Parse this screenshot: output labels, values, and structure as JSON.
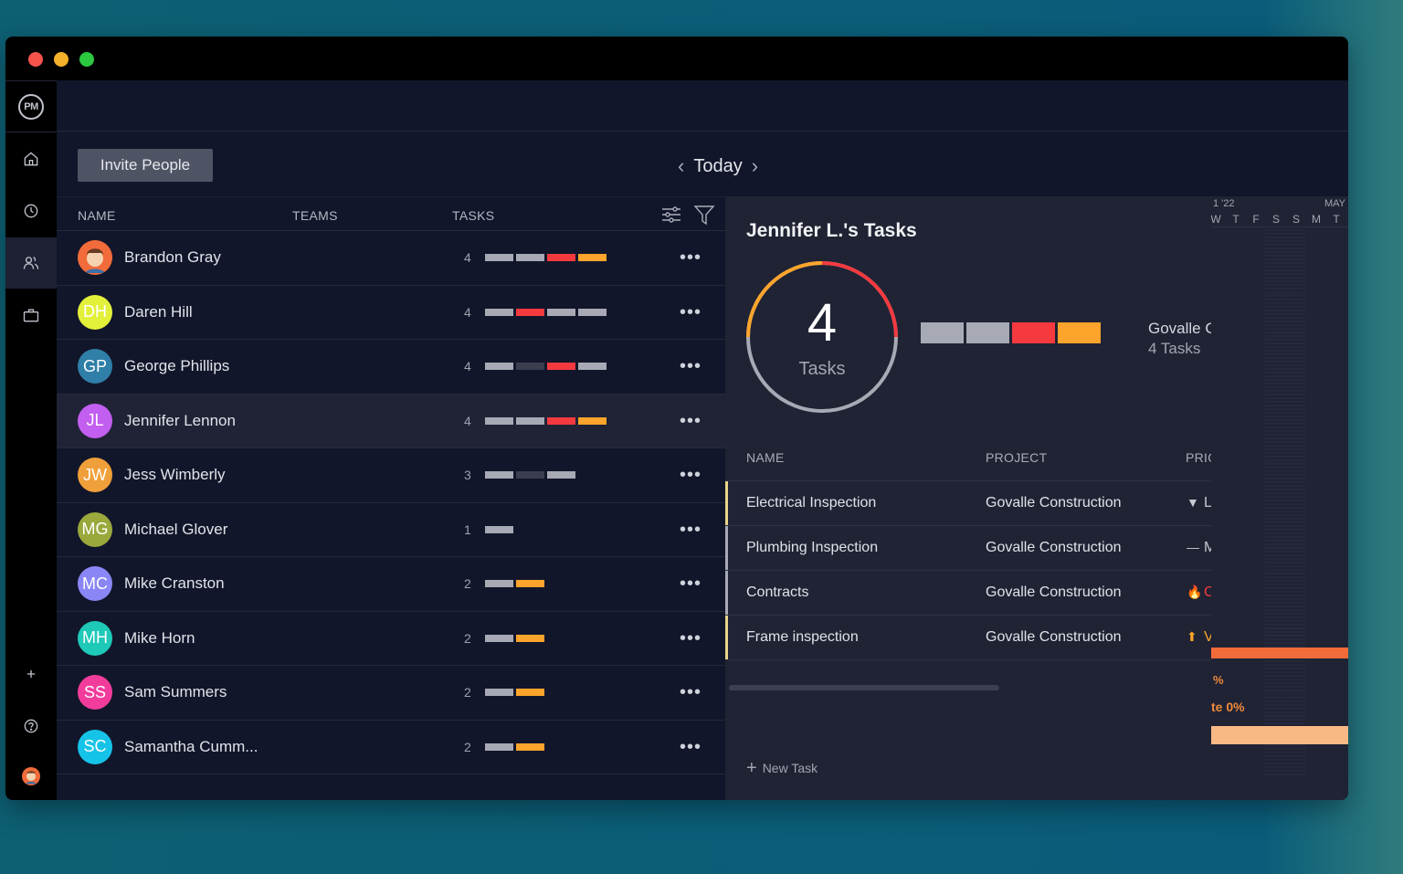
{
  "colors": {
    "gray": "#a7aab5",
    "dark": "#3a3e4f",
    "red": "#f43a3f",
    "orange": "#fca42b",
    "accent_yellow": "#e8d58a",
    "accent_gray": "#a7aab5"
  },
  "sidebar": {
    "logo": "PM",
    "items": [
      {
        "name": "home",
        "icon": "home-icon"
      },
      {
        "name": "time",
        "icon": "clock-icon"
      },
      {
        "name": "people",
        "icon": "people-icon",
        "active": true
      },
      {
        "name": "projects",
        "icon": "briefcase-icon"
      }
    ],
    "bottom": [
      {
        "name": "add",
        "icon": "plus-icon"
      },
      {
        "name": "help",
        "icon": "help-icon"
      },
      {
        "name": "profile",
        "icon": "avatar"
      }
    ]
  },
  "toolbar": {
    "invite_label": "Invite People",
    "today_label": "Today"
  },
  "people": {
    "headers": {
      "name": "NAME",
      "teams": "TEAMS",
      "tasks": "TASKS"
    },
    "rows": [
      {
        "initials": "",
        "name": "Brandon Gray",
        "color": "#f26b3a",
        "count": "4",
        "bars": [
          "gray",
          "gray",
          "red",
          "orange"
        ]
      },
      {
        "initials": "DH",
        "name": "Daren Hill",
        "color": "#e3f03a",
        "count": "4",
        "bars": [
          "gray",
          "red",
          "gray",
          "gray"
        ]
      },
      {
        "initials": "GP",
        "name": "George Phillips",
        "color": "#2f7fa8",
        "count": "4",
        "bars": [
          "gray",
          "dark",
          "red",
          "gray"
        ]
      },
      {
        "initials": "JL",
        "name": "Jennifer Lennon",
        "color": "#c25ef0",
        "count": "4",
        "bars": [
          "gray",
          "gray",
          "red",
          "orange"
        ],
        "selected": true
      },
      {
        "initials": "JW",
        "name": "Jess Wimberly",
        "color": "#f0a03a",
        "count": "3",
        "bars": [
          "gray",
          "dark",
          "gray"
        ]
      },
      {
        "initials": "MG",
        "name": "Michael Glover",
        "color": "#9aa83c",
        "count": "1",
        "bars": [
          "gray"
        ]
      },
      {
        "initials": "MC",
        "name": "Mike Cranston",
        "color": "#8a86f5",
        "count": "2",
        "bars": [
          "gray",
          "orange"
        ]
      },
      {
        "initials": "MH",
        "name": "Mike Horn",
        "color": "#1ec9b8",
        "count": "2",
        "bars": [
          "gray",
          "orange"
        ]
      },
      {
        "initials": "SS",
        "name": "Sam Summers",
        "color": "#f23c9c",
        "count": "2",
        "bars": [
          "gray",
          "orange"
        ]
      },
      {
        "initials": "SC",
        "name": "Samantha Cumm...",
        "color": "#16c3e8",
        "count": "2",
        "bars": [
          "gray",
          "orange"
        ]
      }
    ],
    "more_label": "•••"
  },
  "detail": {
    "title": "Jennifer L.'s Tasks",
    "total": "4",
    "total_label": "Tasks",
    "bars": [
      "gray",
      "gray",
      "red",
      "orange"
    ],
    "project_name": "Govalle C",
    "project_count": "4 Tasks",
    "table": {
      "headers": {
        "name": "NAME",
        "project": "PROJECT",
        "priority": "PRIO"
      },
      "rows": [
        {
          "name": "Electrical Inspection",
          "project": "Govalle Construction",
          "priority_icon": "▼",
          "priority": "L",
          "accent": "yellow",
          "priority_color": "#c6c9d1"
        },
        {
          "name": "Plumbing Inspection",
          "project": "Govalle Construction",
          "priority_icon": "—",
          "priority": "M",
          "accent": "gray",
          "priority_color": "#c6c9d1"
        },
        {
          "name": "Contracts",
          "project": "Govalle Construction",
          "priority_icon": "🔥",
          "priority": "C",
          "accent": "gray",
          "priority_color": "#f43a3f"
        },
        {
          "name": "Frame inspection",
          "project": "Govalle Construction",
          "priority_icon": "⬆",
          "priority": "V",
          "accent": "yellow",
          "priority_color": "#fca42b"
        }
      ]
    },
    "new_task_label": "New Task"
  },
  "gantt": {
    "month_left": "1 '22",
    "month_right": "MAY",
    "days": [
      "W",
      "T",
      "F",
      "S",
      "S",
      "M",
      "T"
    ],
    "pct1": "%",
    "pct2": "te 0%"
  }
}
